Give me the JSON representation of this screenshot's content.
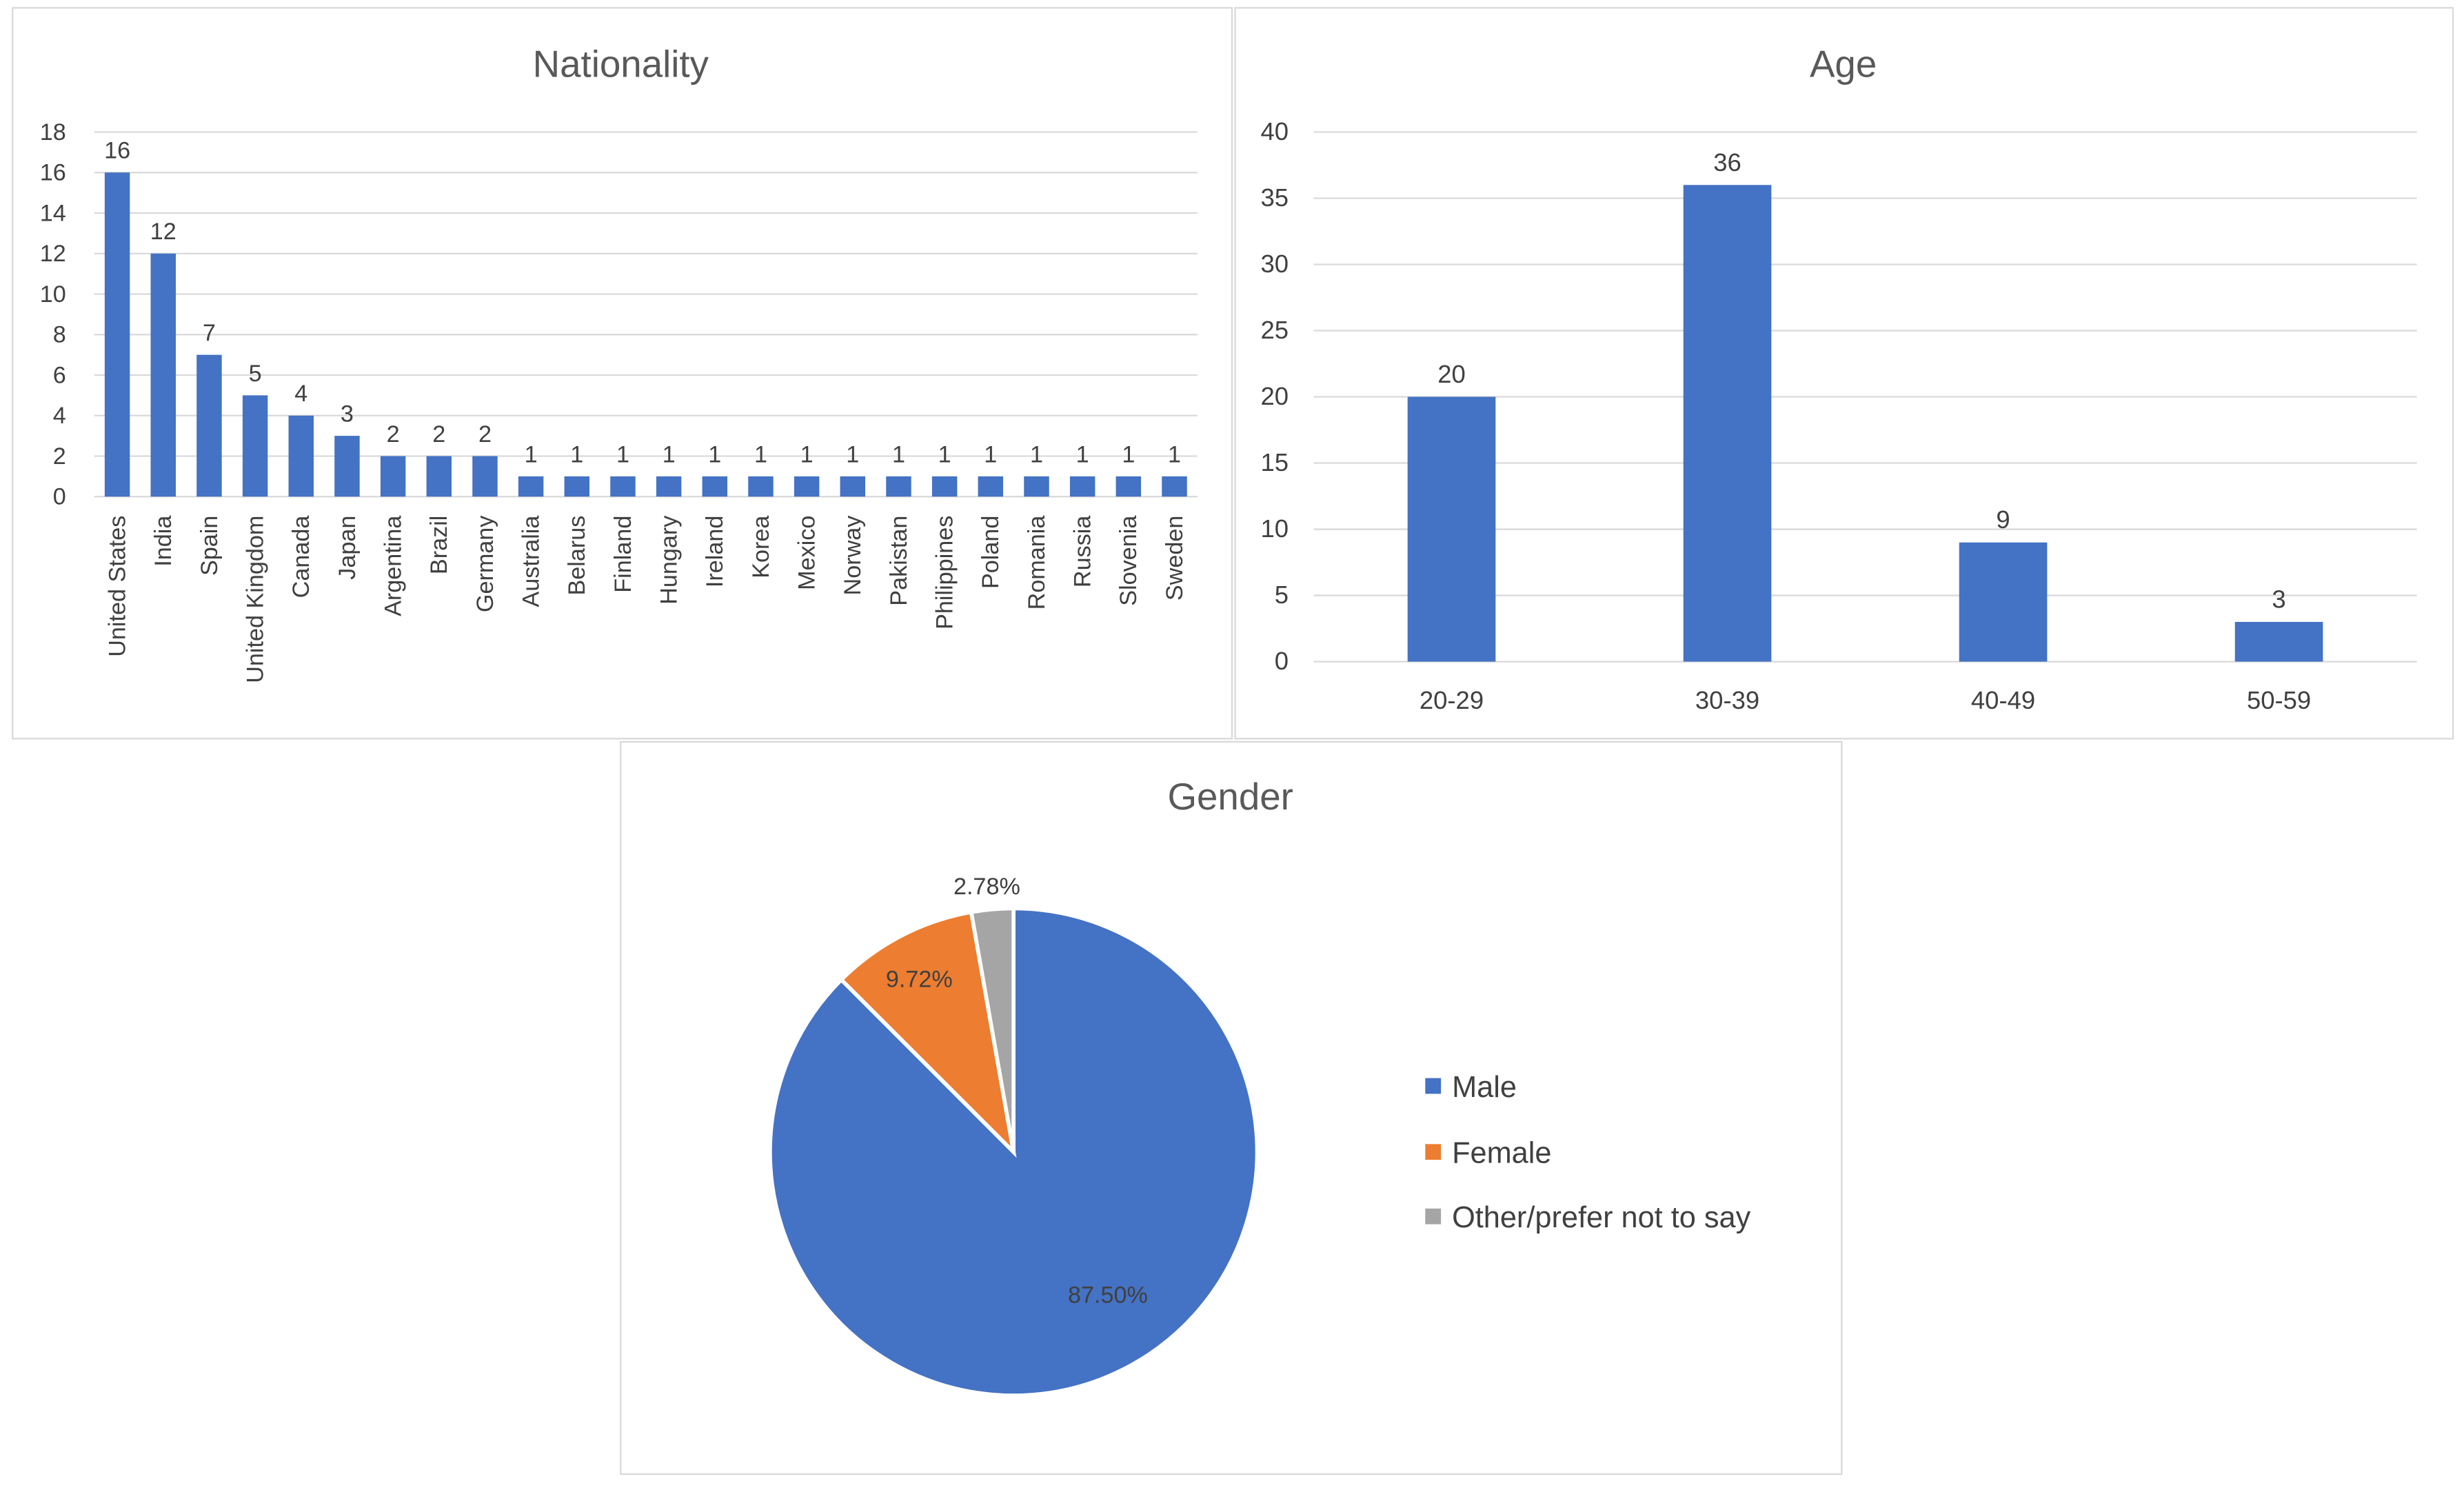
{
  "colors": {
    "blue": "#4472C4",
    "orange": "#ED7D31",
    "gray": "#A5A5A5",
    "grid": "#D9D9D9",
    "text": "#404040",
    "title": "#595959"
  },
  "chart_data": [
    {
      "type": "bar",
      "title": "Nationality",
      "xlabel": "",
      "ylabel": "",
      "ylim": [
        0,
        18
      ],
      "yticks": [
        0,
        2,
        4,
        6,
        8,
        10,
        12,
        14,
        16,
        18
      ],
      "grid": true,
      "categories": [
        "United States",
        "India",
        "Spain",
        "United Kingdom",
        "Canada",
        "Japan",
        "Argentina",
        "Brazil",
        "Germany",
        "Australia",
        "Belarus",
        "Finland",
        "Hungary",
        "Ireland",
        "Korea",
        "Mexico",
        "Norway",
        "Pakistan",
        "Philippines",
        "Poland",
        "Romania",
        "Russia",
        "Slovenia",
        "Sweden"
      ],
      "values": [
        16,
        12,
        7,
        5,
        4,
        3,
        2,
        2,
        2,
        1,
        1,
        1,
        1,
        1,
        1,
        1,
        1,
        1,
        1,
        1,
        1,
        1,
        1,
        1
      ]
    },
    {
      "type": "bar",
      "title": "Age",
      "xlabel": "",
      "ylabel": "",
      "ylim": [
        0,
        40
      ],
      "yticks": [
        0,
        5,
        10,
        15,
        20,
        25,
        30,
        35,
        40
      ],
      "grid": true,
      "categories": [
        "20-29",
        "30-39",
        "40-49",
        "50-59"
      ],
      "values": [
        20,
        36,
        9,
        3
      ]
    },
    {
      "type": "pie",
      "title": "Gender",
      "legend": "right",
      "labels": [
        "Male",
        "Female",
        "Other/prefer not to say"
      ],
      "values": [
        87.5,
        9.72,
        2.78
      ],
      "data_labels": [
        "87.50%",
        "9.72%",
        "2.78%"
      ]
    }
  ]
}
